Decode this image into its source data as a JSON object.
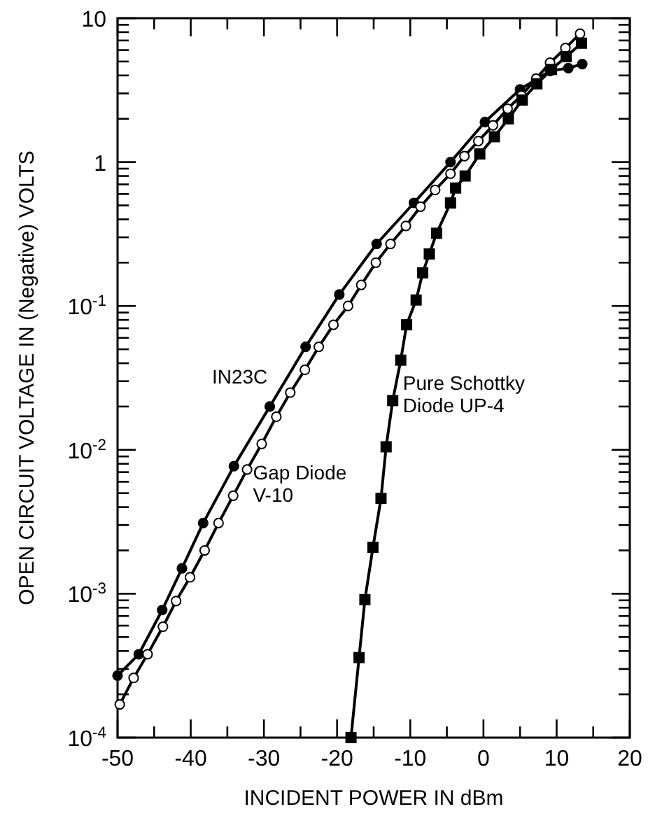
{
  "chart_data": {
    "type": "line",
    "xlabel": "INCIDENT POWER IN dBm",
    "ylabel": "OPEN CIRCUIT VOLTAGE IN (Negative) VOLTS",
    "log": "y",
    "grid": false,
    "line_style": "solid",
    "xlim": [
      -50,
      20
    ],
    "ylim": [
      0.0001,
      10
    ],
    "xticks": [
      -50,
      {
        "value": -45,
        "label": null
      },
      -40,
      {
        "value": -35,
        "label": null
      },
      -30,
      {
        "value": -25,
        "label": null
      },
      -20,
      {
        "value": -15,
        "label": null
      },
      -10,
      {
        "value": -5,
        "label": null
      },
      0,
      {
        "value": 5,
        "label": null
      },
      10,
      {
        "value": 15,
        "label": null
      },
      20
    ],
    "yticks": [
      {
        "value": 0.0001,
        "label": "10$^{-4}$"
      },
      {
        "value": 0.0002,
        "label": null
      },
      {
        "value": 0.0003,
        "label": null
      },
      {
        "value": 0.0004,
        "label": null
      },
      {
        "value": 0.0005,
        "label": null
      },
      {
        "value": 0.0006,
        "label": null
      },
      {
        "value": 0.0007,
        "label": null
      },
      {
        "value": 0.0008,
        "label": null
      },
      {
        "value": 0.0009,
        "label": null
      },
      {
        "value": 0.001,
        "label": "10$^{-3}$"
      },
      {
        "value": 0.002,
        "label": null
      },
      {
        "value": 0.003,
        "label": null
      },
      {
        "value": 0.004,
        "label": null
      },
      {
        "value": 0.005,
        "label": null
      },
      {
        "value": 0.006,
        "label": null
      },
      {
        "value": 0.007,
        "label": null
      },
      {
        "value": 0.008,
        "label": null
      },
      {
        "value": 0.009,
        "label": null
      },
      {
        "value": 0.01,
        "label": "10$^{-2}$"
      },
      {
        "value": 0.02,
        "label": null
      },
      {
        "value": 0.03,
        "label": null
      },
      {
        "value": 0.04,
        "label": null
      },
      {
        "value": 0.05,
        "label": null
      },
      {
        "value": 0.06,
        "label": null
      },
      {
        "value": 0.07,
        "label": null
      },
      {
        "value": 0.08,
        "label": null
      },
      {
        "value": 0.09,
        "label": null
      },
      {
        "value": 0.1,
        "label": "10$^{-1}$"
      },
      {
        "value": 0.2,
        "label": null
      },
      {
        "value": 0.3,
        "label": null
      },
      {
        "value": 0.4,
        "label": null
      },
      {
        "value": 0.5,
        "label": null
      },
      {
        "value": 0.6,
        "label": null
      },
      {
        "value": 0.7,
        "label": null
      },
      {
        "value": 0.8,
        "label": null
      },
      {
        "value": 0.9,
        "label": null
      },
      1,
      {
        "value": 2,
        "label": null
      },
      {
        "value": 3,
        "label": null
      },
      {
        "value": 4,
        "label": null
      },
      {
        "value": 5,
        "label": null
      },
      {
        "value": 6,
        "label": null
      },
      {
        "value": 7,
        "label": null
      },
      {
        "value": 8,
        "label": null
      },
      {
        "value": 9,
        "label": null
      },
      10
    ],
    "series": [
      {
        "name": "IN23C",
        "color": "#000000",
        "marker": "circle",
        "x": [
          -50,
          -47.1,
          -43.9,
          -41.2,
          -38.3,
          -34.1,
          -29.2,
          -24.3,
          -19.7,
          -14.6,
          -9.5,
          -4.5,
          0.2,
          5,
          9.1,
          11.6,
          13.5
        ],
        "values": [
          0.00027,
          0.00038,
          0.00077,
          0.0015,
          0.0031,
          0.0077,
          0.02,
          0.052,
          0.12,
          0.27,
          0.52,
          1,
          1.9,
          3.2,
          4.3,
          4.5,
          4.8
        ]
      },
      {
        "name": "Gap Diode\nV-10",
        "color": "#000000",
        "marker": "circle",
        "colors": [
          "#ffffff",
          "#ffffff",
          "#ffffff",
          "#ffffff",
          "#ffffff",
          "#ffffff",
          "#ffffff",
          "#ffffff",
          "#ffffff",
          "#ffffff",
          "#ffffff",
          "#ffffff",
          "#ffffff",
          "#ffffff",
          "#ffffff",
          "#ffffff",
          "#ffffff",
          "#ffffff",
          "#ffffff",
          "#ffffff",
          "#ffffff",
          "#ffffff",
          "#ffffff",
          "#ffffff",
          "#ffffff",
          "#ffffff",
          "#ffffff",
          "#ffffff",
          "#ffffff",
          "#ffffff",
          "#ffffff",
          "#ffffff",
          "#ffffff"
        ],
        "x": [
          -49.7,
          -47.8,
          -45.9,
          -43.8,
          -42,
          -40.1,
          -38.1,
          -36.2,
          -34.2,
          -32.3,
          -30.3,
          -28.3,
          -26.4,
          -24.4,
          -22.5,
          -20.5,
          -18.5,
          -16.7,
          -14.7,
          -12.7,
          -10.6,
          -8.6,
          -6.6,
          -4.5,
          -2.6,
          -0.7,
          1.3,
          3.3,
          5.2,
          7.2,
          9.1,
          11.2,
          13.2
        ],
        "values": [
          0.00017,
          0.00026,
          0.00038,
          0.00059,
          0.00089,
          0.0013,
          0.002,
          0.0031,
          0.0048,
          0.0073,
          0.011,
          0.017,
          0.025,
          0.036,
          0.052,
          0.074,
          0.1,
          0.14,
          0.2,
          0.27,
          0.36,
          0.49,
          0.64,
          0.83,
          1.1,
          1.4,
          1.8,
          2.35,
          2.9,
          3.8,
          4.9,
          6.2,
          7.8
        ]
      },
      {
        "name": "Pure Schottky\nDiode UP-4",
        "color": "#000000",
        "marker": "square",
        "x": [
          -18.1,
          -17,
          -16.2,
          -15.1,
          -14,
          -13.3,
          -12.4,
          -11.3,
          -10.5,
          -9.2,
          -8.3,
          -7.4,
          -6.4,
          -4.5,
          -3.8,
          -2.5,
          -0.5,
          1.5,
          3.4,
          5.3,
          7.3,
          9.3,
          11.3,
          13.4
        ],
        "values": [
          0.0001,
          0.00036,
          0.00091,
          0.0021,
          0.0046,
          0.0105,
          0.022,
          0.042,
          0.074,
          0.11,
          0.17,
          0.23,
          0.32,
          0.52,
          0.66,
          0.8,
          1.14,
          1.5,
          2,
          2.7,
          3.5,
          4.4,
          5.4,
          6.7
        ]
      }
    ]
  }
}
